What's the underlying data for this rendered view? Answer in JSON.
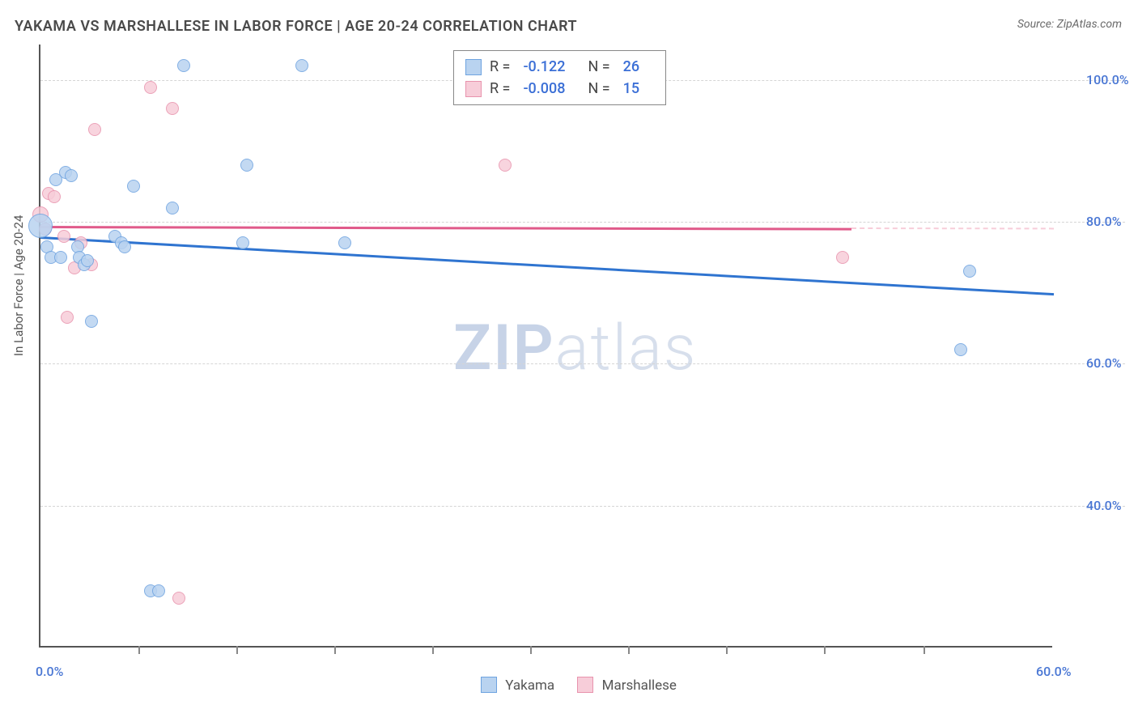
{
  "title": "YAKAMA VS MARSHALLESE IN LABOR FORCE | AGE 20-24 CORRELATION CHART",
  "source_prefix": "Source: ",
  "source_name": "ZipAtlas.com",
  "y_axis_label": "In Labor Force | Age 20-24",
  "watermark_zip": "ZIP",
  "watermark_atlas": "atlas",
  "chart": {
    "type": "scatter",
    "xlim": [
      0,
      60
    ],
    "ylim": [
      20,
      105
    ],
    "x_ticks": [
      0,
      60
    ],
    "x_tick_labels": [
      "0.0%",
      "60.0%"
    ],
    "x_minor_ticks": [
      5.8,
      11.6,
      17.4,
      23.2,
      29.0,
      34.8,
      40.6,
      46.4,
      52.3
    ],
    "y_ticks": [
      40,
      60,
      80,
      100
    ],
    "y_tick_labels": [
      "40.0%",
      "60.0%",
      "80.0%",
      "100.0%"
    ],
    "background_color": "#ffffff",
    "grid_color": "#d5d5d5",
    "marker_radius_min": 8,
    "marker_radius_max": 15,
    "label_fontsize": 16,
    "title_fontsize": 18
  },
  "series": {
    "yakama": {
      "label": "Yakama",
      "color_fill": "#b9d3f0",
      "color_stroke": "#6ea3e0",
      "R": "-0.122",
      "N": "26",
      "trend": {
        "x1": 0,
        "y1": 78,
        "x2": 60,
        "y2": 70,
        "color": "#2f74d0"
      },
      "points": [
        {
          "x": 0.0,
          "y": 79.5,
          "r": 15
        },
        {
          "x": 0.4,
          "y": 76.5,
          "r": 8
        },
        {
          "x": 0.6,
          "y": 75,
          "r": 8
        },
        {
          "x": 0.9,
          "y": 86,
          "r": 8
        },
        {
          "x": 1.2,
          "y": 75,
          "r": 8
        },
        {
          "x": 1.5,
          "y": 87,
          "r": 8
        },
        {
          "x": 1.8,
          "y": 86.5,
          "r": 8
        },
        {
          "x": 2.2,
          "y": 76.5,
          "r": 8
        },
        {
          "x": 2.3,
          "y": 75,
          "r": 8
        },
        {
          "x": 2.6,
          "y": 74,
          "r": 8
        },
        {
          "x": 2.8,
          "y": 74.5,
          "r": 8
        },
        {
          "x": 3.0,
          "y": 66,
          "r": 8
        },
        {
          "x": 4.4,
          "y": 78,
          "r": 8
        },
        {
          "x": 4.8,
          "y": 77,
          "r": 8
        },
        {
          "x": 5.0,
          "y": 76.5,
          "r": 8
        },
        {
          "x": 5.5,
          "y": 85,
          "r": 8
        },
        {
          "x": 6.5,
          "y": 28,
          "r": 8
        },
        {
          "x": 7.0,
          "y": 28,
          "r": 8
        },
        {
          "x": 7.8,
          "y": 82,
          "r": 8
        },
        {
          "x": 8.5,
          "y": 102,
          "r": 8
        },
        {
          "x": 12.0,
          "y": 77,
          "r": 8
        },
        {
          "x": 12.2,
          "y": 88,
          "r": 8
        },
        {
          "x": 15.5,
          "y": 102,
          "r": 8
        },
        {
          "x": 18.0,
          "y": 77,
          "r": 8
        },
        {
          "x": 54.5,
          "y": 62,
          "r": 8
        },
        {
          "x": 55.0,
          "y": 73,
          "r": 8
        }
      ]
    },
    "marshallese": {
      "label": "Marshallese",
      "color_fill": "#f7cdd9",
      "color_stroke": "#e893ad",
      "R": "-0.008",
      "N": "15",
      "trend": {
        "x1": 0,
        "y1": 79.5,
        "x2": 48,
        "y2": 79.2,
        "dash_to_x": 60,
        "color": "#e05a8a"
      },
      "points": [
        {
          "x": 0.0,
          "y": 81,
          "r": 10
        },
        {
          "x": 0.3,
          "y": 79,
          "r": 8
        },
        {
          "x": 0.5,
          "y": 84,
          "r": 8
        },
        {
          "x": 0.8,
          "y": 83.5,
          "r": 8
        },
        {
          "x": 1.4,
          "y": 78,
          "r": 8
        },
        {
          "x": 1.6,
          "y": 66.5,
          "r": 8
        },
        {
          "x": 2.0,
          "y": 73.5,
          "r": 8
        },
        {
          "x": 2.4,
          "y": 77,
          "r": 8
        },
        {
          "x": 3.0,
          "y": 74,
          "r": 8
        },
        {
          "x": 3.2,
          "y": 93,
          "r": 8
        },
        {
          "x": 6.5,
          "y": 99,
          "r": 8
        },
        {
          "x": 7.8,
          "y": 96,
          "r": 8
        },
        {
          "x": 8.2,
          "y": 27,
          "r": 8
        },
        {
          "x": 27.5,
          "y": 88,
          "r": 8
        },
        {
          "x": 47.5,
          "y": 75,
          "r": 8
        }
      ]
    }
  },
  "legend_labels": {
    "r_prefix": "R = ",
    "n_prefix": "N = "
  }
}
